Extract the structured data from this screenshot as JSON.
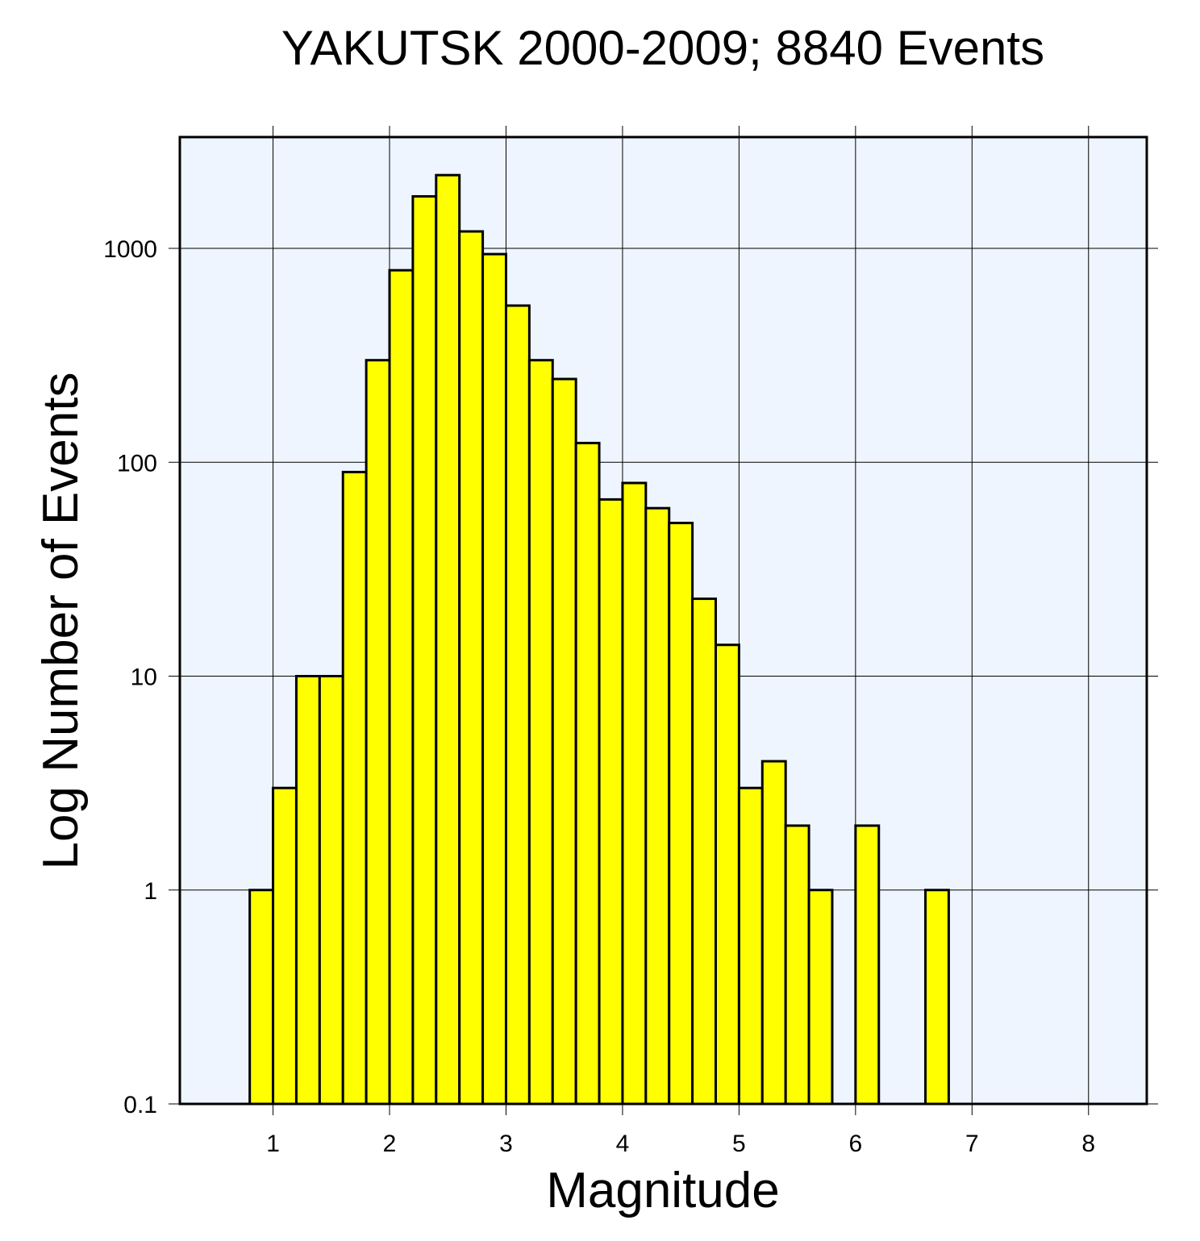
{
  "chart_data": {
    "type": "bar",
    "title": "YAKUTSK 2000-2009; 8840 Events",
    "xlabel": "Magnitude",
    "ylabel": "Log Number of Events",
    "y_scale": "log",
    "xlim": [
      0.2,
      8.5
    ],
    "ylim": [
      0.1,
      3000
    ],
    "x_ticks": [
      1,
      2,
      3,
      4,
      5,
      6,
      7,
      8
    ],
    "x_tick_labels": [
      "1",
      "2",
      "3",
      "4",
      "5",
      "6",
      "7",
      "8"
    ],
    "y_ticks": [
      0.1,
      1,
      10,
      100,
      1000
    ],
    "y_tick_labels": [
      "0.1",
      "1",
      "10",
      "100",
      "1000"
    ],
    "bin_width": 0.2,
    "grid": true,
    "bars": [
      {
        "x_start": 0.8,
        "value": 1
      },
      {
        "x_start": 1.0,
        "value": 3
      },
      {
        "x_start": 1.2,
        "value": 10
      },
      {
        "x_start": 1.4,
        "value": 10
      },
      {
        "x_start": 1.6,
        "value": 90
      },
      {
        "x_start": 1.8,
        "value": 300
      },
      {
        "x_start": 2.0,
        "value": 790
      },
      {
        "x_start": 2.2,
        "value": 1750
      },
      {
        "x_start": 2.4,
        "value": 2200
      },
      {
        "x_start": 2.6,
        "value": 1200
      },
      {
        "x_start": 2.8,
        "value": 940
      },
      {
        "x_start": 3.0,
        "value": 540
      },
      {
        "x_start": 3.2,
        "value": 300
      },
      {
        "x_start": 3.4,
        "value": 245
      },
      {
        "x_start": 3.6,
        "value": 123
      },
      {
        "x_start": 3.8,
        "value": 67
      },
      {
        "x_start": 4.0,
        "value": 80
      },
      {
        "x_start": 4.2,
        "value": 61
      },
      {
        "x_start": 4.4,
        "value": 52
      },
      {
        "x_start": 4.6,
        "value": 23
      },
      {
        "x_start": 4.8,
        "value": 14
      },
      {
        "x_start": 5.0,
        "value": 3
      },
      {
        "x_start": 5.2,
        "value": 4
      },
      {
        "x_start": 5.4,
        "value": 2
      },
      {
        "x_start": 5.6,
        "value": 1
      },
      {
        "x_start": 6.0,
        "value": 2
      },
      {
        "x_start": 6.6,
        "value": 1
      }
    ],
    "colors": {
      "bar_fill": "#ffff00",
      "bar_stroke": "#000000",
      "plot_background": "#eef5ff",
      "grid": "#000000"
    }
  }
}
